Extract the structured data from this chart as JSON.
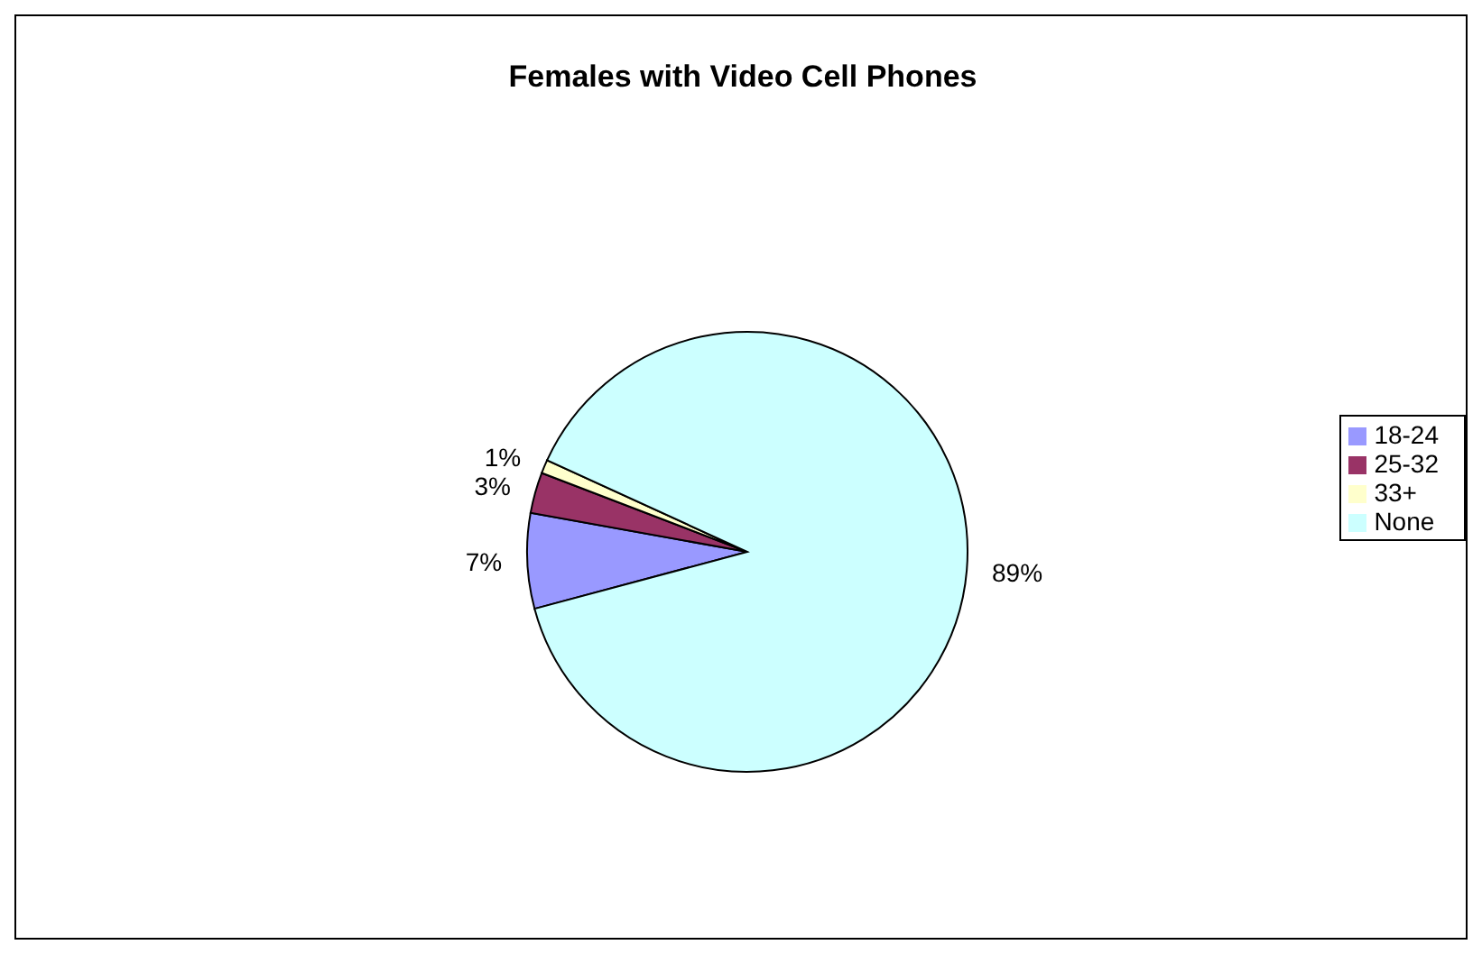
{
  "chart_data": {
    "type": "pie",
    "title": "Females with Video Cell Phones",
    "categories": [
      "18-24",
      "25-32",
      "33+",
      "None"
    ],
    "values": [
      7,
      3,
      1,
      89
    ],
    "value_labels": [
      "7%",
      "3%",
      "1%",
      "89%"
    ],
    "colors": [
      "#9999ff",
      "#993366",
      "#ffffcc",
      "#ccffff"
    ],
    "legend": "right"
  }
}
